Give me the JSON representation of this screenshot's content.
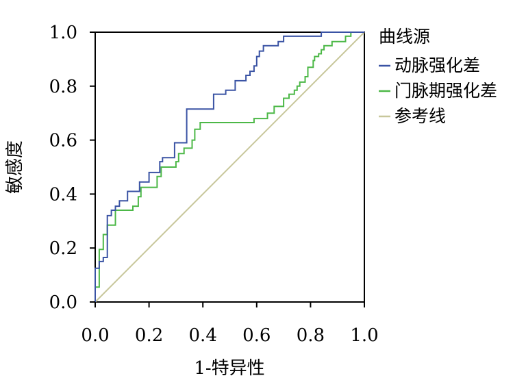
{
  "chart_data": {
    "type": "line",
    "title": "",
    "xlabel": "1-特异性",
    "ylabel": "敏感度",
    "xlim": [
      0,
      1
    ],
    "ylim": [
      0,
      1
    ],
    "x_ticks": [
      "0.0",
      "0.2",
      "0.4",
      "0.6",
      "0.8",
      "1.0"
    ],
    "y_ticks": [
      "0.0",
      "0.2",
      "0.4",
      "0.6",
      "0.8",
      "1.0"
    ],
    "grid": false,
    "legend": {
      "title": "曲线源",
      "placement": "right"
    },
    "series": [
      {
        "name": "动脉强化差",
        "color": "#3a53a4",
        "x": [
          0.0,
          0.0,
          0.015,
          0.015,
          0.03,
          0.03,
          0.045,
          0.045,
          0.06,
          0.06,
          0.075,
          0.075,
          0.09,
          0.09,
          0.12,
          0.12,
          0.165,
          0.165,
          0.2,
          0.2,
          0.24,
          0.24,
          0.25,
          0.25,
          0.295,
          0.295,
          0.34,
          0.34,
          0.44,
          0.44,
          0.485,
          0.485,
          0.52,
          0.52,
          0.56,
          0.56,
          0.575,
          0.575,
          0.59,
          0.59,
          0.6,
          0.6,
          0.61,
          0.61,
          0.625,
          0.625,
          0.68,
          0.68,
          0.7,
          0.7,
          0.84,
          0.84,
          1.0
        ],
        "y": [
          0.0,
          0.125,
          0.125,
          0.15,
          0.15,
          0.165,
          0.165,
          0.32,
          0.32,
          0.34,
          0.34,
          0.355,
          0.355,
          0.375,
          0.375,
          0.41,
          0.41,
          0.445,
          0.445,
          0.48,
          0.48,
          0.52,
          0.52,
          0.535,
          0.535,
          0.59,
          0.59,
          0.715,
          0.715,
          0.77,
          0.77,
          0.785,
          0.785,
          0.82,
          0.82,
          0.84,
          0.84,
          0.855,
          0.855,
          0.875,
          0.875,
          0.91,
          0.91,
          0.93,
          0.93,
          0.95,
          0.95,
          0.965,
          0.965,
          0.985,
          0.985,
          1.0,
          1.0
        ]
      },
      {
        "name": "门脉期强化差",
        "color": "#4cb847",
        "x": [
          0.0,
          0.0,
          0.015,
          0.015,
          0.03,
          0.03,
          0.045,
          0.045,
          0.075,
          0.075,
          0.14,
          0.14,
          0.16,
          0.16,
          0.17,
          0.17,
          0.23,
          0.23,
          0.245,
          0.245,
          0.3,
          0.3,
          0.31,
          0.31,
          0.33,
          0.33,
          0.36,
          0.36,
          0.37,
          0.37,
          0.39,
          0.39,
          0.59,
          0.59,
          0.64,
          0.64,
          0.665,
          0.665,
          0.7,
          0.7,
          0.72,
          0.72,
          0.74,
          0.74,
          0.75,
          0.75,
          0.76,
          0.76,
          0.78,
          0.78,
          0.79,
          0.79,
          0.81,
          0.81,
          0.815,
          0.815,
          0.83,
          0.83,
          0.84,
          0.84,
          0.85,
          0.85,
          0.88,
          0.88,
          0.93,
          0.93,
          0.95,
          0.95,
          1.0
        ],
        "y": [
          0.0,
          0.055,
          0.055,
          0.195,
          0.195,
          0.25,
          0.25,
          0.285,
          0.285,
          0.34,
          0.34,
          0.355,
          0.355,
          0.39,
          0.39,
          0.425,
          0.425,
          0.465,
          0.465,
          0.5,
          0.5,
          0.52,
          0.52,
          0.55,
          0.55,
          0.57,
          0.57,
          0.6,
          0.6,
          0.64,
          0.64,
          0.665,
          0.665,
          0.68,
          0.68,
          0.7,
          0.7,
          0.725,
          0.725,
          0.755,
          0.755,
          0.77,
          0.77,
          0.785,
          0.785,
          0.8,
          0.8,
          0.815,
          0.815,
          0.835,
          0.835,
          0.87,
          0.87,
          0.895,
          0.895,
          0.91,
          0.91,
          0.92,
          0.92,
          0.935,
          0.935,
          0.95,
          0.95,
          0.965,
          0.965,
          0.985,
          0.985,
          1.0,
          1.0
        ]
      },
      {
        "name": "参考线",
        "color": "#c8c79b",
        "x": [
          0.0,
          1.0
        ],
        "y": [
          0.0,
          1.0
        ]
      }
    ]
  }
}
